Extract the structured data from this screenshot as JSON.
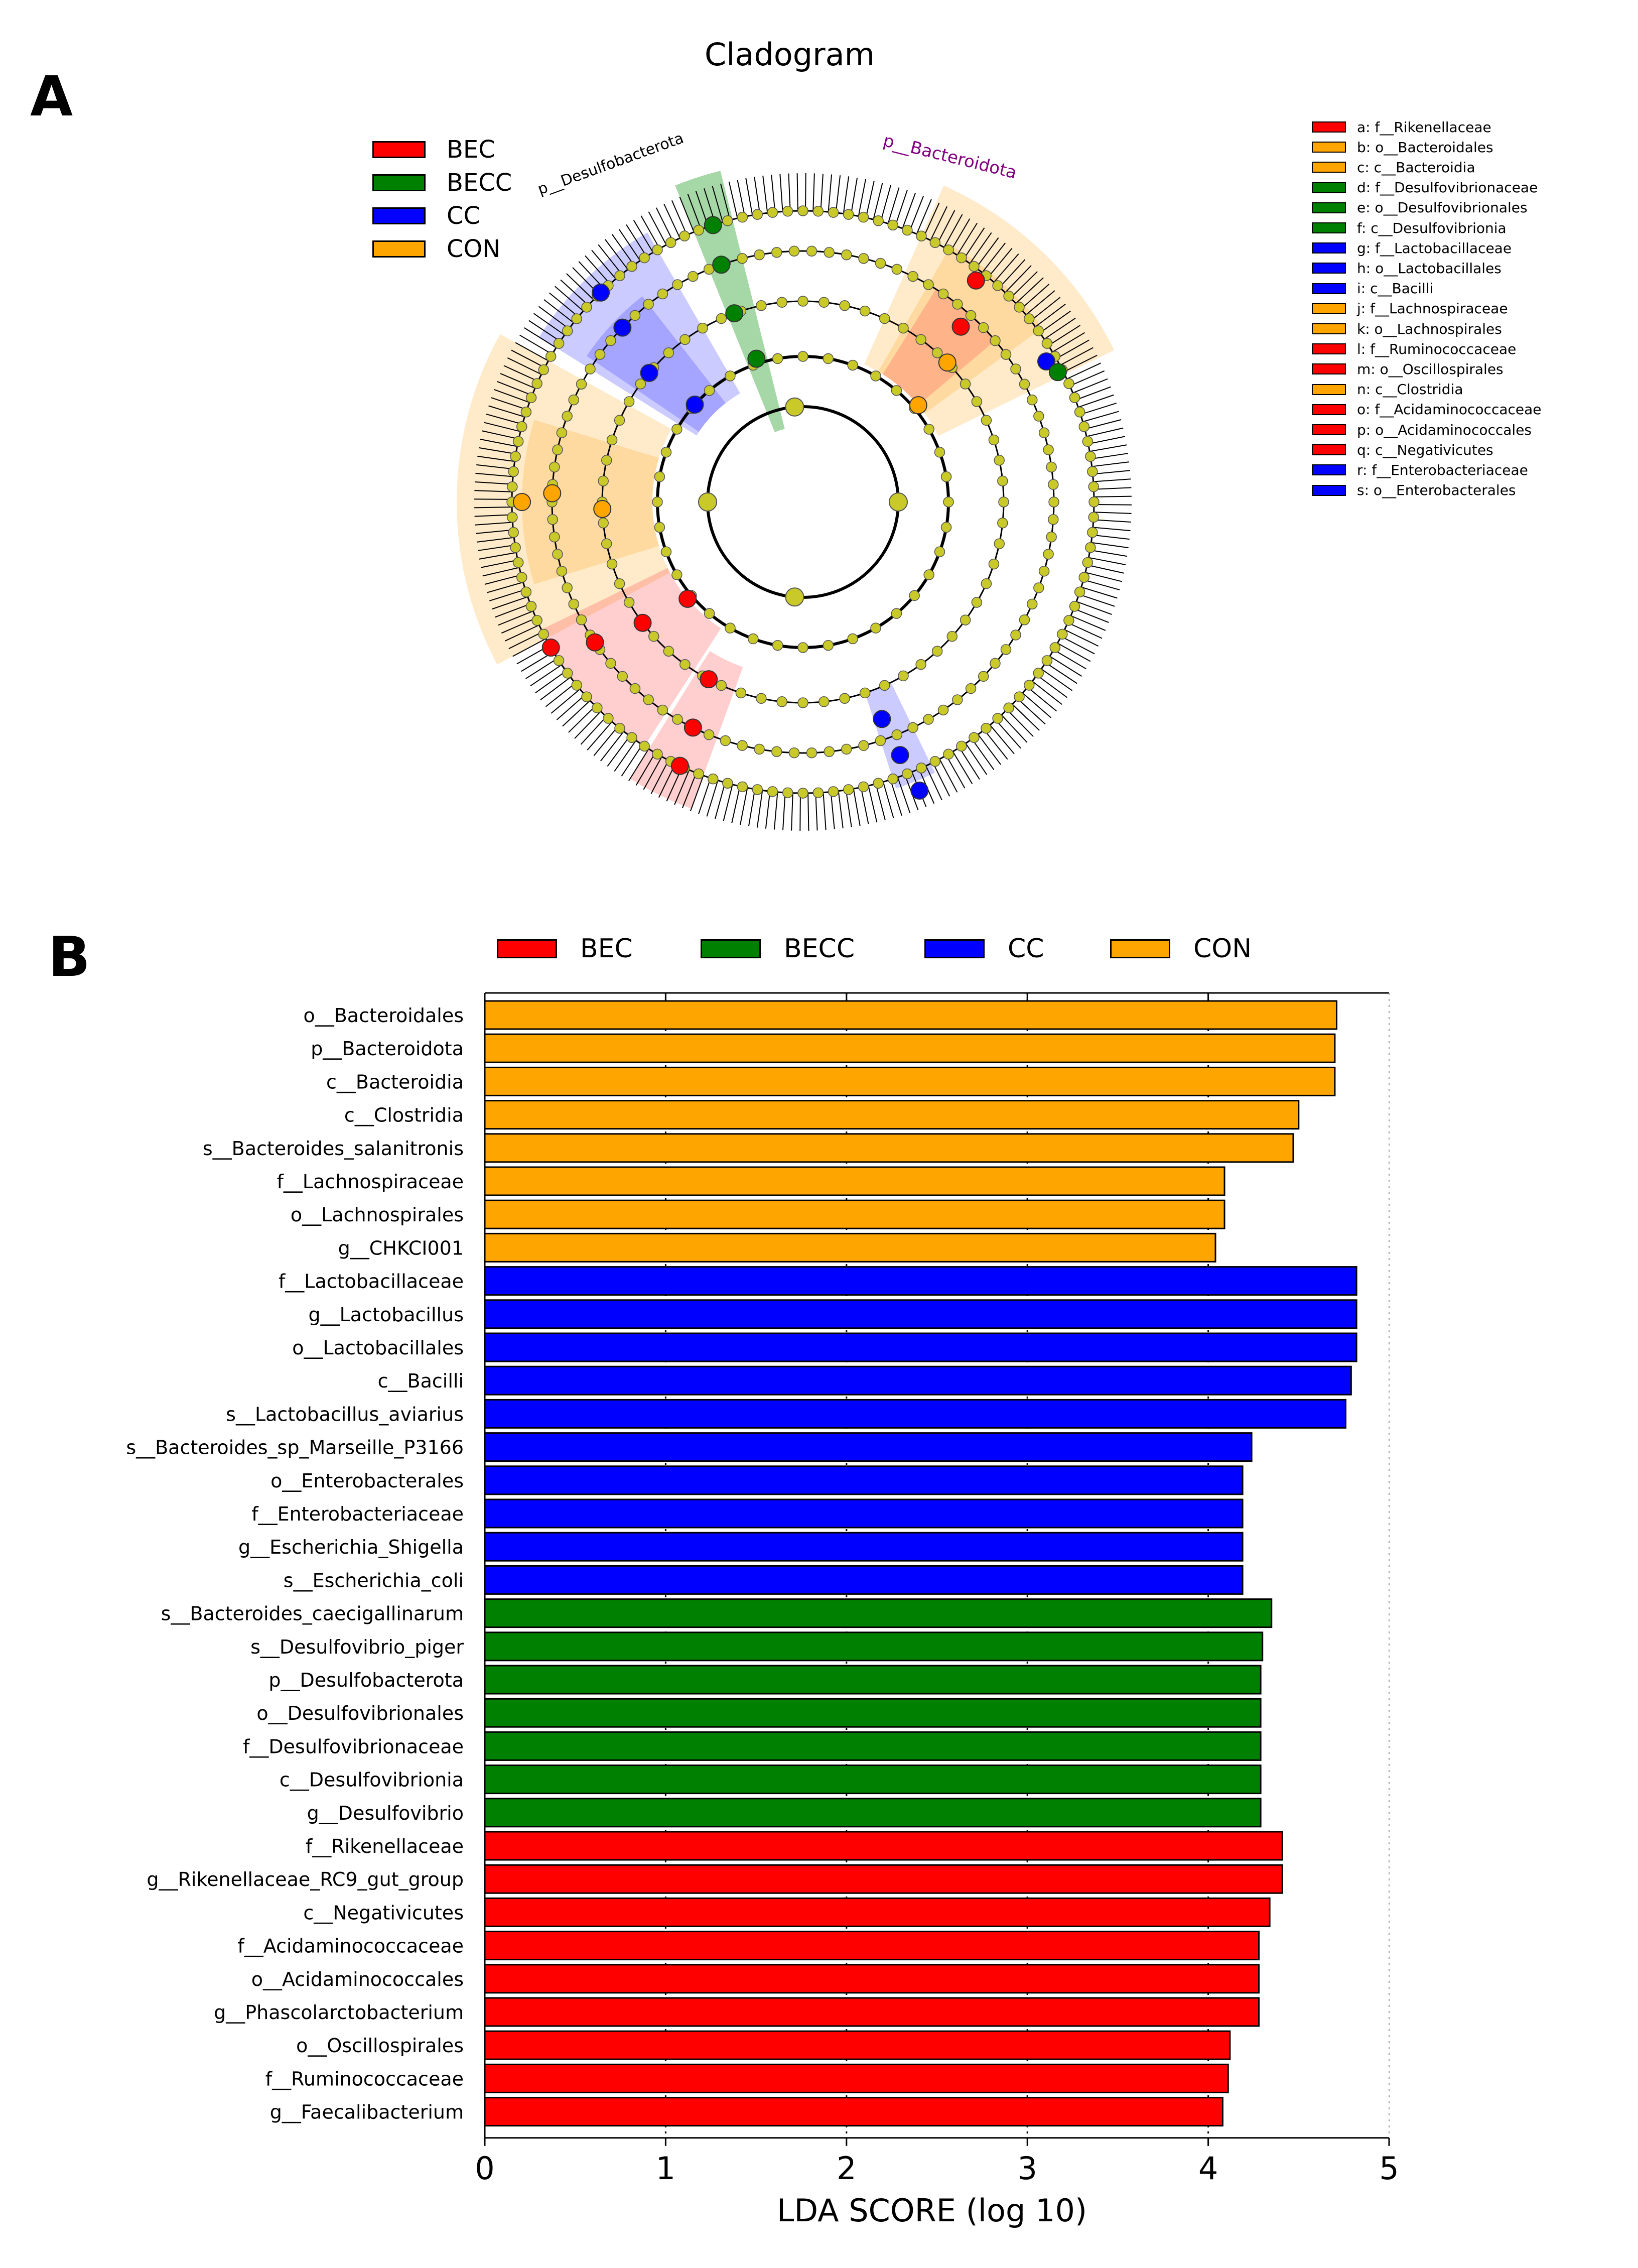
{
  "panel_a": {
    "letter": "A",
    "title": "Cladogram",
    "legend": [
      {
        "label": "BEC",
        "color": "#ff0000"
      },
      {
        "label": "BECC",
        "color": "#008000"
      },
      {
        "label": "CC",
        "color": "#0000ff"
      },
      {
        "label": "CON",
        "color": "#ffa500"
      }
    ],
    "key": [
      {
        "text": "a: f__Rikenellaceae",
        "color": "#ff0000"
      },
      {
        "text": "b: o__Bacteroidales",
        "color": "#ffa500"
      },
      {
        "text": "c: c__Bacteroidia",
        "color": "#ffa500"
      },
      {
        "text": "d: f__Desulfovibrionaceae",
        "color": "#008000"
      },
      {
        "text": "e: o__Desulfovibrionales",
        "color": "#008000"
      },
      {
        "text": "f: c__Desulfovibrionia",
        "color": "#008000"
      },
      {
        "text": "g: f__Lactobacillaceae",
        "color": "#0000ff"
      },
      {
        "text": "h: o__Lactobacillales",
        "color": "#0000ff"
      },
      {
        "text": "i: c__Bacilli",
        "color": "#0000ff"
      },
      {
        "text": "j: f__Lachnospiraceae",
        "color": "#ffa500"
      },
      {
        "text": "k: o__Lachnospirales",
        "color": "#ffa500"
      },
      {
        "text": "l: f__Ruminococcaceae",
        "color": "#ff0000"
      },
      {
        "text": "m: o__Oscillospirales",
        "color": "#ff0000"
      },
      {
        "text": "n: c__Clostridia",
        "color": "#ffa500"
      },
      {
        "text": "o: f__Acidaminococcaceae",
        "color": "#ff0000"
      },
      {
        "text": "p: o__Acidaminococcales",
        "color": "#ff0000"
      },
      {
        "text": "q: c__Negativicutes",
        "color": "#ff0000"
      },
      {
        "text": "r: f__Enterobacteriaceae",
        "color": "#0000ff"
      },
      {
        "text": "s: o__Enterobacterales",
        "color": "#0000ff"
      }
    ],
    "clade_labels": {
      "bacteroidota": "p__Bacteroidota",
      "desulfobacterota": "p__Desulfobacterota"
    }
  },
  "panel_b": {
    "letter": "B",
    "legend": [
      {
        "label": "BEC",
        "color": "#ff0000"
      },
      {
        "label": "BECC",
        "color": "#008000"
      },
      {
        "label": "CC",
        "color": "#0000ff"
      },
      {
        "label": "CON",
        "color": "#ffa500"
      }
    ]
  },
  "chart_data": {
    "type": "bar",
    "orientation": "horizontal",
    "title": "",
    "xlabel": "LDA SCORE (log 10)",
    "ylabel": "",
    "xlim": [
      0,
      5
    ],
    "xticks": [
      0,
      1,
      2,
      3,
      4,
      5
    ],
    "grid": "vertical dotted",
    "legend_position": "top",
    "group_colors": {
      "BEC": "#ff0000",
      "BECC": "#008000",
      "CC": "#0000ff",
      "CON": "#ffa500"
    },
    "bars": [
      {
        "label": "o__Bacteroidales",
        "value": 4.71,
        "group": "CON"
      },
      {
        "label": "p__Bacteroidota",
        "value": 4.7,
        "group": "CON"
      },
      {
        "label": "c__Bacteroidia",
        "value": 4.7,
        "group": "CON"
      },
      {
        "label": "c__Clostridia",
        "value": 4.5,
        "group": "CON"
      },
      {
        "label": "s__Bacteroides_salanitronis",
        "value": 4.47,
        "group": "CON"
      },
      {
        "label": "f__Lachnospiraceae",
        "value": 4.09,
        "group": "CON"
      },
      {
        "label": "o__Lachnospirales",
        "value": 4.09,
        "group": "CON"
      },
      {
        "label": "g__CHKCI001",
        "value": 4.04,
        "group": "CON"
      },
      {
        "label": "f__Lactobacillaceae",
        "value": 4.82,
        "group": "CC"
      },
      {
        "label": "g__Lactobacillus",
        "value": 4.82,
        "group": "CC"
      },
      {
        "label": "o__Lactobacillales",
        "value": 4.82,
        "group": "CC"
      },
      {
        "label": "c__Bacilli",
        "value": 4.79,
        "group": "CC"
      },
      {
        "label": "s__Lactobacillus_aviarius",
        "value": 4.76,
        "group": "CC"
      },
      {
        "label": "s__Bacteroides_sp_Marseille_P3166",
        "value": 4.24,
        "group": "CC"
      },
      {
        "label": "o__Enterobacterales",
        "value": 4.19,
        "group": "CC"
      },
      {
        "label": "f__Enterobacteriaceae",
        "value": 4.19,
        "group": "CC"
      },
      {
        "label": "g__Escherichia_Shigella",
        "value": 4.19,
        "group": "CC"
      },
      {
        "label": "s__Escherichia_coli",
        "value": 4.19,
        "group": "CC"
      },
      {
        "label": "s__Bacteroides_caecigallinarum",
        "value": 4.35,
        "group": "BECC"
      },
      {
        "label": "s__Desulfovibrio_piger",
        "value": 4.3,
        "group": "BECC"
      },
      {
        "label": "p__Desulfobacterota",
        "value": 4.29,
        "group": "BECC"
      },
      {
        "label": "o__Desulfovibrionales",
        "value": 4.29,
        "group": "BECC"
      },
      {
        "label": "f__Desulfovibrionaceae",
        "value": 4.29,
        "group": "BECC"
      },
      {
        "label": "c__Desulfovibrionia",
        "value": 4.29,
        "group": "BECC"
      },
      {
        "label": "g__Desulfovibrio",
        "value": 4.29,
        "group": "BECC"
      },
      {
        "label": "f__Rikenellaceae",
        "value": 4.41,
        "group": "BEC"
      },
      {
        "label": "g__Rikenellaceae_RC9_gut_group",
        "value": 4.41,
        "group": "BEC"
      },
      {
        "label": "c__Negativicutes",
        "value": 4.34,
        "group": "BEC"
      },
      {
        "label": "f__Acidaminococcaceae",
        "value": 4.28,
        "group": "BEC"
      },
      {
        "label": "o__Acidaminococcales",
        "value": 4.28,
        "group": "BEC"
      },
      {
        "label": "g__Phascolarctobacterium",
        "value": 4.28,
        "group": "BEC"
      },
      {
        "label": "o__Oscillospirales",
        "value": 4.12,
        "group": "BEC"
      },
      {
        "label": "f__Ruminococcaceae",
        "value": 4.11,
        "group": "BEC"
      },
      {
        "label": "g__Faecalibacterium",
        "value": 4.08,
        "group": "BEC"
      }
    ]
  }
}
